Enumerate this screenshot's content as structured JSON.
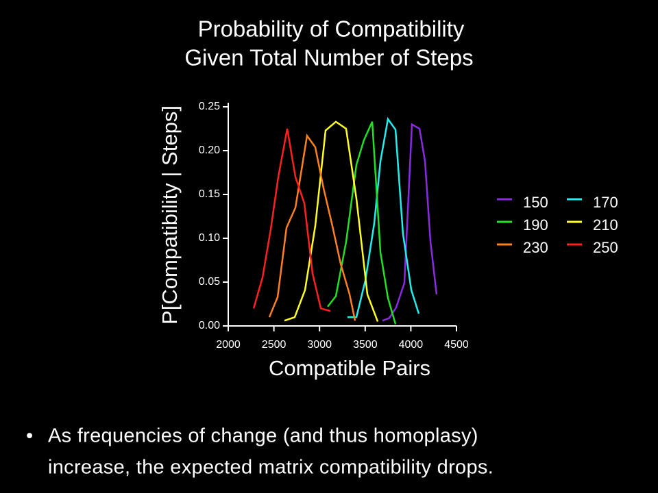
{
  "title": [
    "Probability of Compatibility",
    "Given Total Number of Steps"
  ],
  "bullet": [
    "As frequencies of change (and thus homoplasy)",
    "increase, the expected matrix compatibility drops."
  ],
  "chart_data": {
    "type": "line",
    "x_label": "Compatible Pairs",
    "y_label": "P[Compatibility | Steps]",
    "xlim": [
      2000,
      4500
    ],
    "xticks": [
      2000,
      2500,
      3000,
      3500,
      4000,
      4500
    ],
    "ylim": [
      0,
      0.25
    ],
    "yticks": [
      {
        "value": 0,
        "label": "0.00"
      },
      {
        "value": 0.05,
        "label": "0.05"
      },
      {
        "value": 0.1,
        "label": "0.10"
      },
      {
        "value": 0.15,
        "label": "0.15"
      },
      {
        "value": 0.2,
        "label": "0.20"
      },
      {
        "value": 0.25,
        "label": "0.25"
      }
    ],
    "legend": "right",
    "series": [
      {
        "name": "150",
        "color": "#8a2be2",
        "x": [
          3689,
          3764,
          3839,
          3929,
          4012,
          4095,
          4155,
          4215,
          4282
        ],
        "values": [
          0.006,
          0.009,
          0.021,
          0.049,
          0.23,
          0.225,
          0.188,
          0.096,
          0.036
        ]
      },
      {
        "name": "170",
        "color": "#22eeee",
        "x": [
          3306,
          3404,
          3502,
          3599,
          3667,
          3749,
          3832,
          3914,
          4005,
          4087
        ],
        "values": [
          0.01,
          0.01,
          0.052,
          0.117,
          0.188,
          0.236,
          0.224,
          0.105,
          0.041,
          0.014
        ]
      },
      {
        "name": "190",
        "color": "#22e022",
        "x": [
          3089,
          3179,
          3291,
          3404,
          3486,
          3577,
          3667,
          3749,
          3832
        ],
        "values": [
          0.022,
          0.034,
          0.096,
          0.184,
          0.212,
          0.233,
          0.084,
          0.032,
          0.002
        ]
      },
      {
        "name": "210",
        "color": "#ffff22",
        "x": [
          2616,
          2728,
          2841,
          2953,
          3066,
          3179,
          3291,
          3404,
          3524,
          3637
        ],
        "values": [
          0.006,
          0.01,
          0.041,
          0.114,
          0.223,
          0.233,
          0.225,
          0.145,
          0.036,
          0.005
        ]
      },
      {
        "name": "230",
        "color": "#ff8020",
        "x": [
          2450,
          2541,
          2638,
          2736,
          2863,
          2953,
          3044,
          3141,
          3231,
          3329,
          3389
        ],
        "values": [
          0.01,
          0.033,
          0.112,
          0.135,
          0.217,
          0.204,
          0.157,
          0.114,
          0.071,
          0.036,
          0.006
        ]
      },
      {
        "name": "250",
        "color": "#ff2020",
        "x": [
          2278,
          2375,
          2465,
          2548,
          2646,
          2736,
          2833,
          2923,
          3014,
          3119
        ],
        "values": [
          0.02,
          0.055,
          0.11,
          0.17,
          0.225,
          0.17,
          0.14,
          0.06,
          0.02,
          0.017
        ]
      }
    ]
  }
}
